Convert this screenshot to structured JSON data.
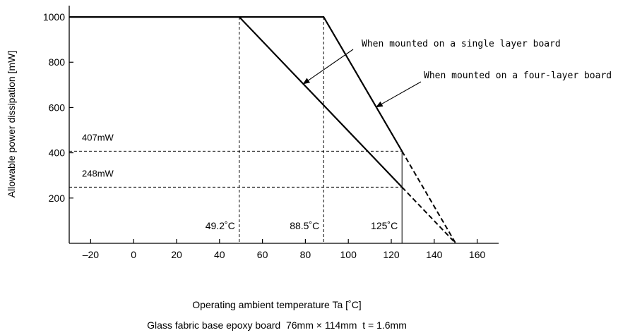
{
  "chart_data": {
    "type": "line",
    "title": "",
    "xlabel": "Operating ambient temperature Ta [˚C]",
    "ylabel": "Allowable power dissipation [mW]",
    "footnote": "Glass fabric base epoxy board  76mm × 114mm  t = 1.6mm",
    "xlim": [
      -30,
      170
    ],
    "ylim": [
      0,
      1050
    ],
    "x_ticks": [
      -20,
      0,
      20,
      40,
      60,
      80,
      100,
      120,
      140,
      160
    ],
    "x_tick_labels": [
      "–20",
      "0",
      "20",
      "40",
      "60",
      "80",
      "100",
      "120",
      "140",
      "160"
    ],
    "y_ticks": [
      200,
      400,
      600,
      800,
      1000
    ],
    "y_tick_labels": [
      "200",
      "400",
      "600",
      "800",
      "1000"
    ],
    "grid": false,
    "series": [
      {
        "name": "When mounted on a four-layer board",
        "x": [
          -30,
          88.5,
          125
        ],
        "y": [
          1000,
          1000,
          407
        ],
        "extrapolated": {
          "x": [
            125,
            150
          ],
          "y": [
            407,
            0
          ]
        }
      },
      {
        "name": "When mounted on a single layer board",
        "x": [
          -30,
          49.2,
          125
        ],
        "y": [
          1000,
          1000,
          248
        ],
        "extrapolated": {
          "x": [
            125,
            150
          ],
          "y": [
            248,
            0
          ]
        }
      }
    ],
    "reference_lines": [
      {
        "type": "vertical",
        "x": 49.2,
        "label": "49.2˚C",
        "style": "dashed"
      },
      {
        "type": "vertical",
        "x": 88.5,
        "label": "88.5˚C",
        "style": "dashed"
      },
      {
        "type": "vertical",
        "x": 125,
        "label": "125˚C",
        "style": "solid"
      },
      {
        "type": "horizontal",
        "y": 407,
        "label": "407mW",
        "style": "dashed"
      },
      {
        "type": "horizontal",
        "y": 248,
        "label": "248mW",
        "style": "dashed"
      }
    ],
    "annotations": [
      {
        "text": "When mounted on a single layer board",
        "target_series": 1,
        "target_x": 79
      },
      {
        "text": "When mounted on a four-layer board",
        "target_series": 0,
        "target_x": 113
      }
    ]
  }
}
